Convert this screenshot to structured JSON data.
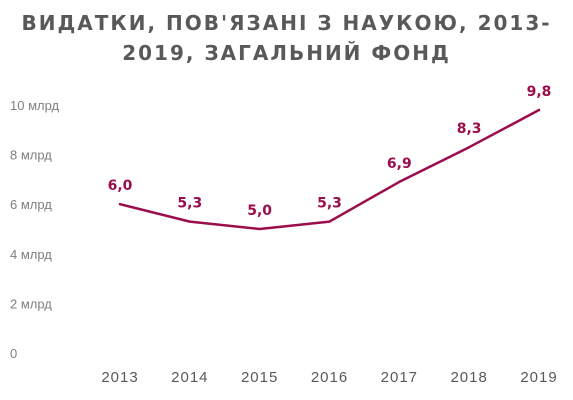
{
  "title": {
    "line1": "ВИДАТКИ, ПОВ'ЯЗАНІ З НАУКОЮ, 2013-",
    "line2": "2019, ЗАГАЛЬНИЙ ФОНД"
  },
  "colors": {
    "line": "#9b0d4b",
    "labels": "#9b0d4b",
    "title": "#595959",
    "axis_text": "#7f7f7f"
  },
  "chart_data": {
    "type": "line",
    "title": "ВИДАТКИ, ПОВ'ЯЗАНІ З НАУКОЮ, 2013-2019, ЗАГАЛЬНИЙ ФОНД",
    "xlabel": "",
    "ylabel": "",
    "categories": [
      "2013",
      "2014",
      "2015",
      "2016",
      "2017",
      "2018",
      "2019"
    ],
    "series": [
      {
        "values": [
          6.0,
          5.3,
          5.0,
          5.3,
          6.9,
          8.3,
          9.8
        ],
        "data_labels": [
          "6,0",
          "5,3",
          "5,0",
          "5,3",
          "6,9",
          "8,3",
          "9,8"
        ]
      }
    ],
    "ylim": [
      0,
      10
    ],
    "yticks": [
      {
        "value": 0,
        "label": "0"
      },
      {
        "value": 2,
        "label": "2 млрд"
      },
      {
        "value": 4,
        "label": "4 млрд"
      },
      {
        "value": 6,
        "label": "6 млрд"
      },
      {
        "value": 8,
        "label": "8 млрд"
      },
      {
        "value": 10,
        "label": "10 млрд"
      }
    ],
    "grid": false,
    "legend": "none"
  }
}
